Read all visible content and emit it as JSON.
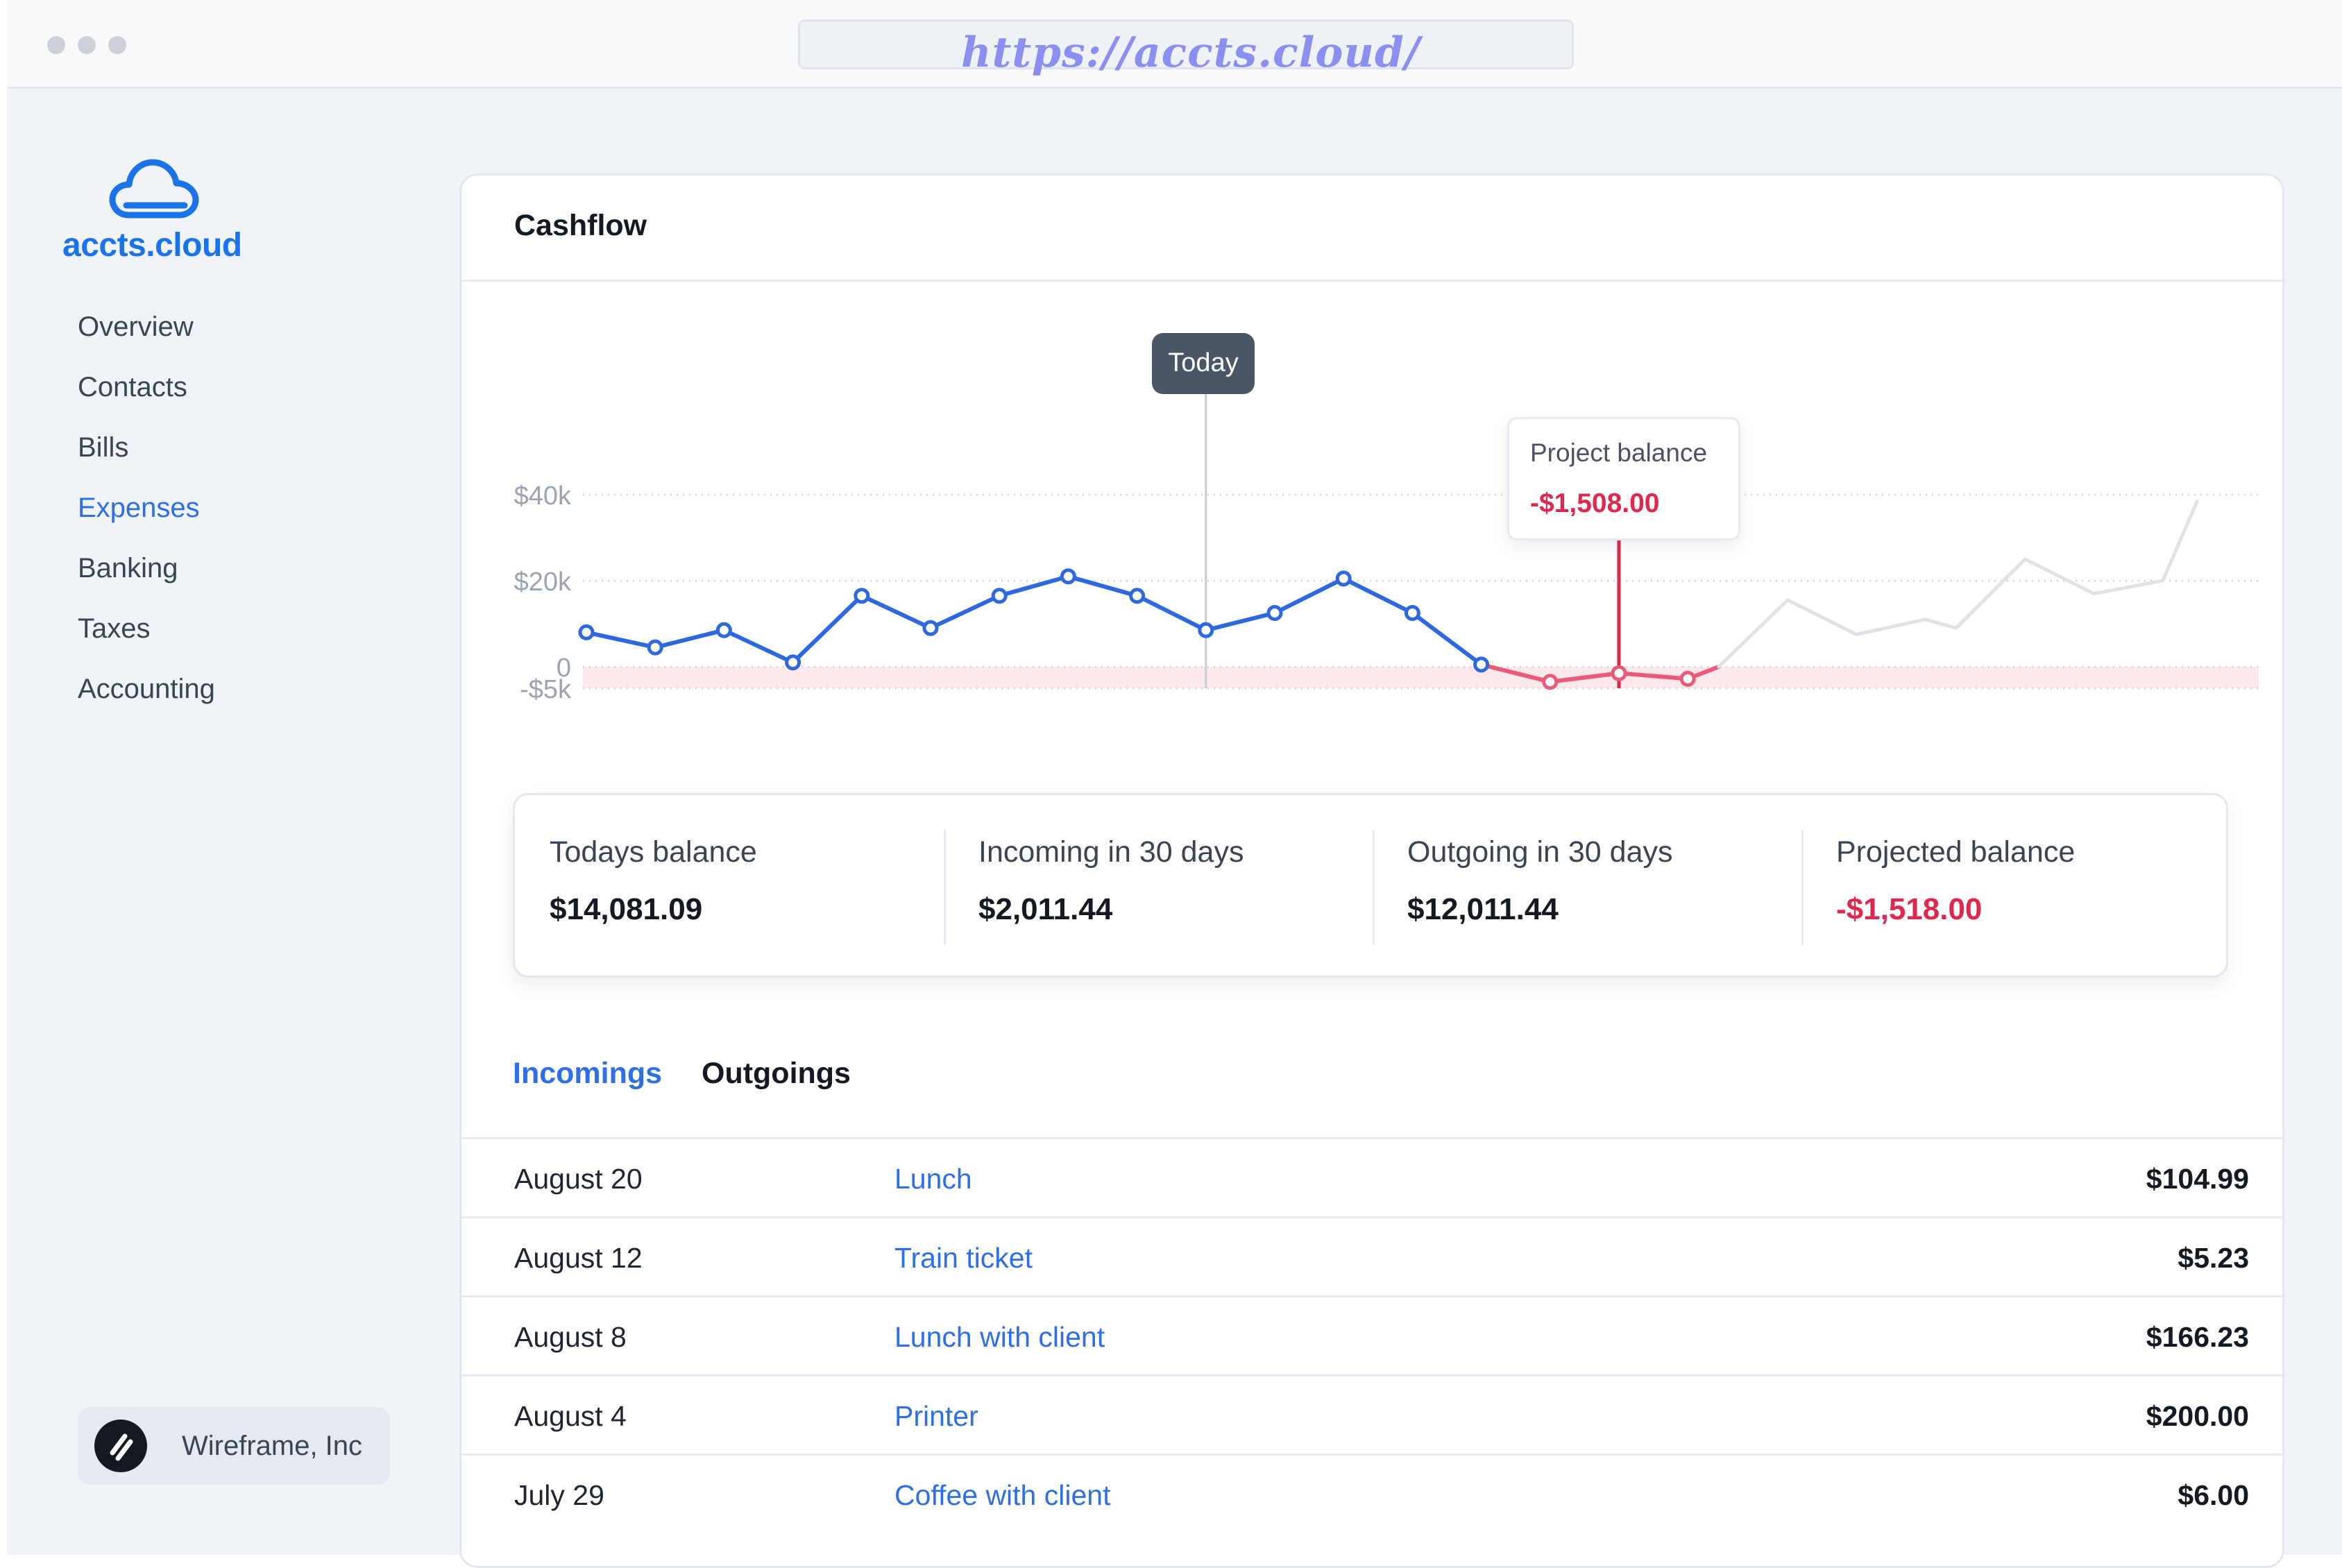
{
  "browser": {
    "url": "https://accts.cloud/"
  },
  "sidebar": {
    "logo_text": "accts.cloud",
    "nav": [
      {
        "label": "Overview",
        "active": false
      },
      {
        "label": "Contacts",
        "active": false
      },
      {
        "label": "Bills",
        "active": false
      },
      {
        "label": "Expenses",
        "active": true
      },
      {
        "label": "Banking",
        "active": false
      },
      {
        "label": "Taxes",
        "active": false
      },
      {
        "label": "Accounting",
        "active": false
      }
    ],
    "org_name": "Wireframe, Inc"
  },
  "cashflow": {
    "title": "Cashflow",
    "today_label": "Today",
    "tooltip": {
      "label": "Project balance",
      "value": "-$1,508.00"
    }
  },
  "stats": [
    {
      "label": "Todays balance",
      "value": "$14,081.09",
      "negative": false
    },
    {
      "label": "Incoming in 30 days",
      "value": "$2,011.44",
      "negative": false
    },
    {
      "label": "Outgoing in 30 days",
      "value": "$12,011.44",
      "negative": false
    },
    {
      "label": "Projected balance",
      "value": "-$1,518.00",
      "negative": true
    }
  ],
  "tabs": [
    {
      "label": "Incomings",
      "active": true
    },
    {
      "label": "Outgoings",
      "active": false
    }
  ],
  "transactions": [
    {
      "date": "August 20",
      "description": "Lunch",
      "amount": "$104.99"
    },
    {
      "date": "August 12",
      "description": "Train ticket",
      "amount": "$5.23"
    },
    {
      "date": "August 8",
      "description": "Lunch with client",
      "amount": "$166.23"
    },
    {
      "date": "August 4",
      "description": "Printer",
      "amount": "$200.00"
    },
    {
      "date": "July 29",
      "description": "Coffee with client",
      "amount": "$6.00"
    }
  ],
  "chart_data": {
    "type": "line",
    "title": "",
    "xlabel": "",
    "ylabel": "",
    "y_tick_labels": [
      "$40k",
      "$20k",
      "0",
      "-$5k"
    ],
    "y_ticks": [
      40000,
      20000,
      0,
      -5000
    ],
    "ylim": [
      -5000,
      40000
    ],
    "grid": true,
    "today_index": 9,
    "marker_index": 15,
    "series": [
      {
        "status": "actual",
        "color": "#2d68e0",
        "x": [
          0,
          1,
          2,
          3,
          4,
          5,
          6,
          7,
          8,
          9,
          10,
          11,
          12,
          13
        ],
        "values": [
          8000,
          4500,
          8500,
          1000,
          16500,
          9000,
          16500,
          21000,
          16500,
          8500,
          12500,
          20500,
          12500,
          500
        ]
      },
      {
        "status": "below-zero",
        "color": "#ec5a79",
        "x": [
          13,
          14,
          15,
          16,
          16.45
        ],
        "values": [
          500,
          -3500,
          -1508,
          -2800,
          0
        ]
      },
      {
        "status": "projected",
        "color": "#dfe2e7",
        "x": [
          16.45,
          17.45,
          18.45,
          19.45,
          19.9,
          20.9,
          21.9,
          22.9,
          23.4
        ],
        "values": [
          0,
          15500,
          7500,
          11000,
          9000,
          25000,
          17000,
          20000,
          38500
        ]
      }
    ]
  }
}
